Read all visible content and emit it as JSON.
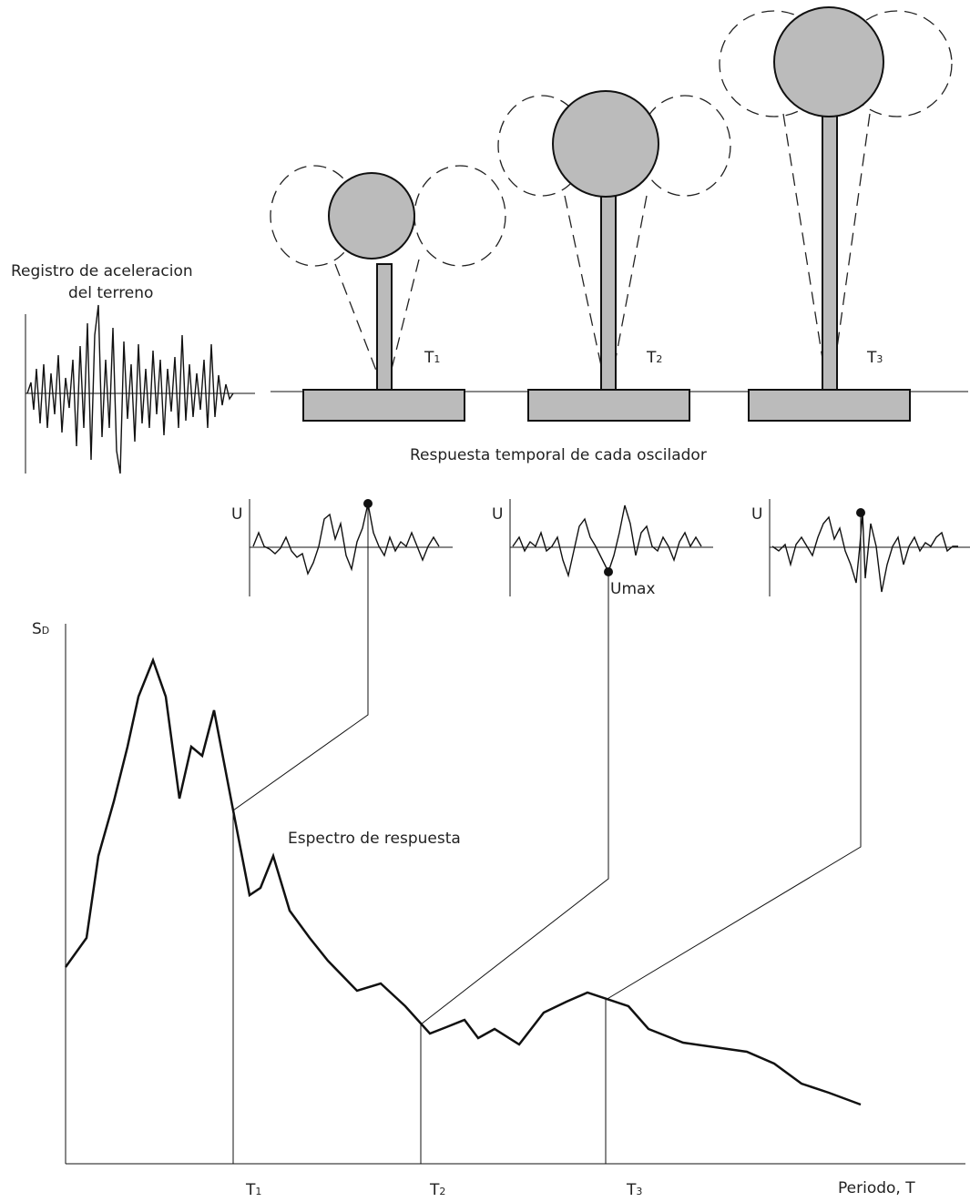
{
  "ground_record": {
    "line1": "Registro de aceleracion",
    "line2": "del terreno"
  },
  "oscillators": [
    {
      "main": "T",
      "sub": "1"
    },
    {
      "main": "T",
      "sub": "2"
    },
    {
      "main": "T",
      "sub": "3"
    }
  ],
  "response_caption": "Respuesta temporal de cada oscilador",
  "response_plots": [
    {
      "axis": "U"
    },
    {
      "axis": "U",
      "peak": "Umax"
    },
    {
      "axis": "U"
    }
  ],
  "spectrum": {
    "y_axis": {
      "main": "S",
      "sub": "D"
    },
    "label": "Espectro de respuesta",
    "x_ticks": [
      {
        "main": "T",
        "sub": "1"
      },
      {
        "main": "T",
        "sub": "2"
      },
      {
        "main": "T",
        "sub": "3"
      }
    ],
    "x_axis": "Periodo, T"
  }
}
